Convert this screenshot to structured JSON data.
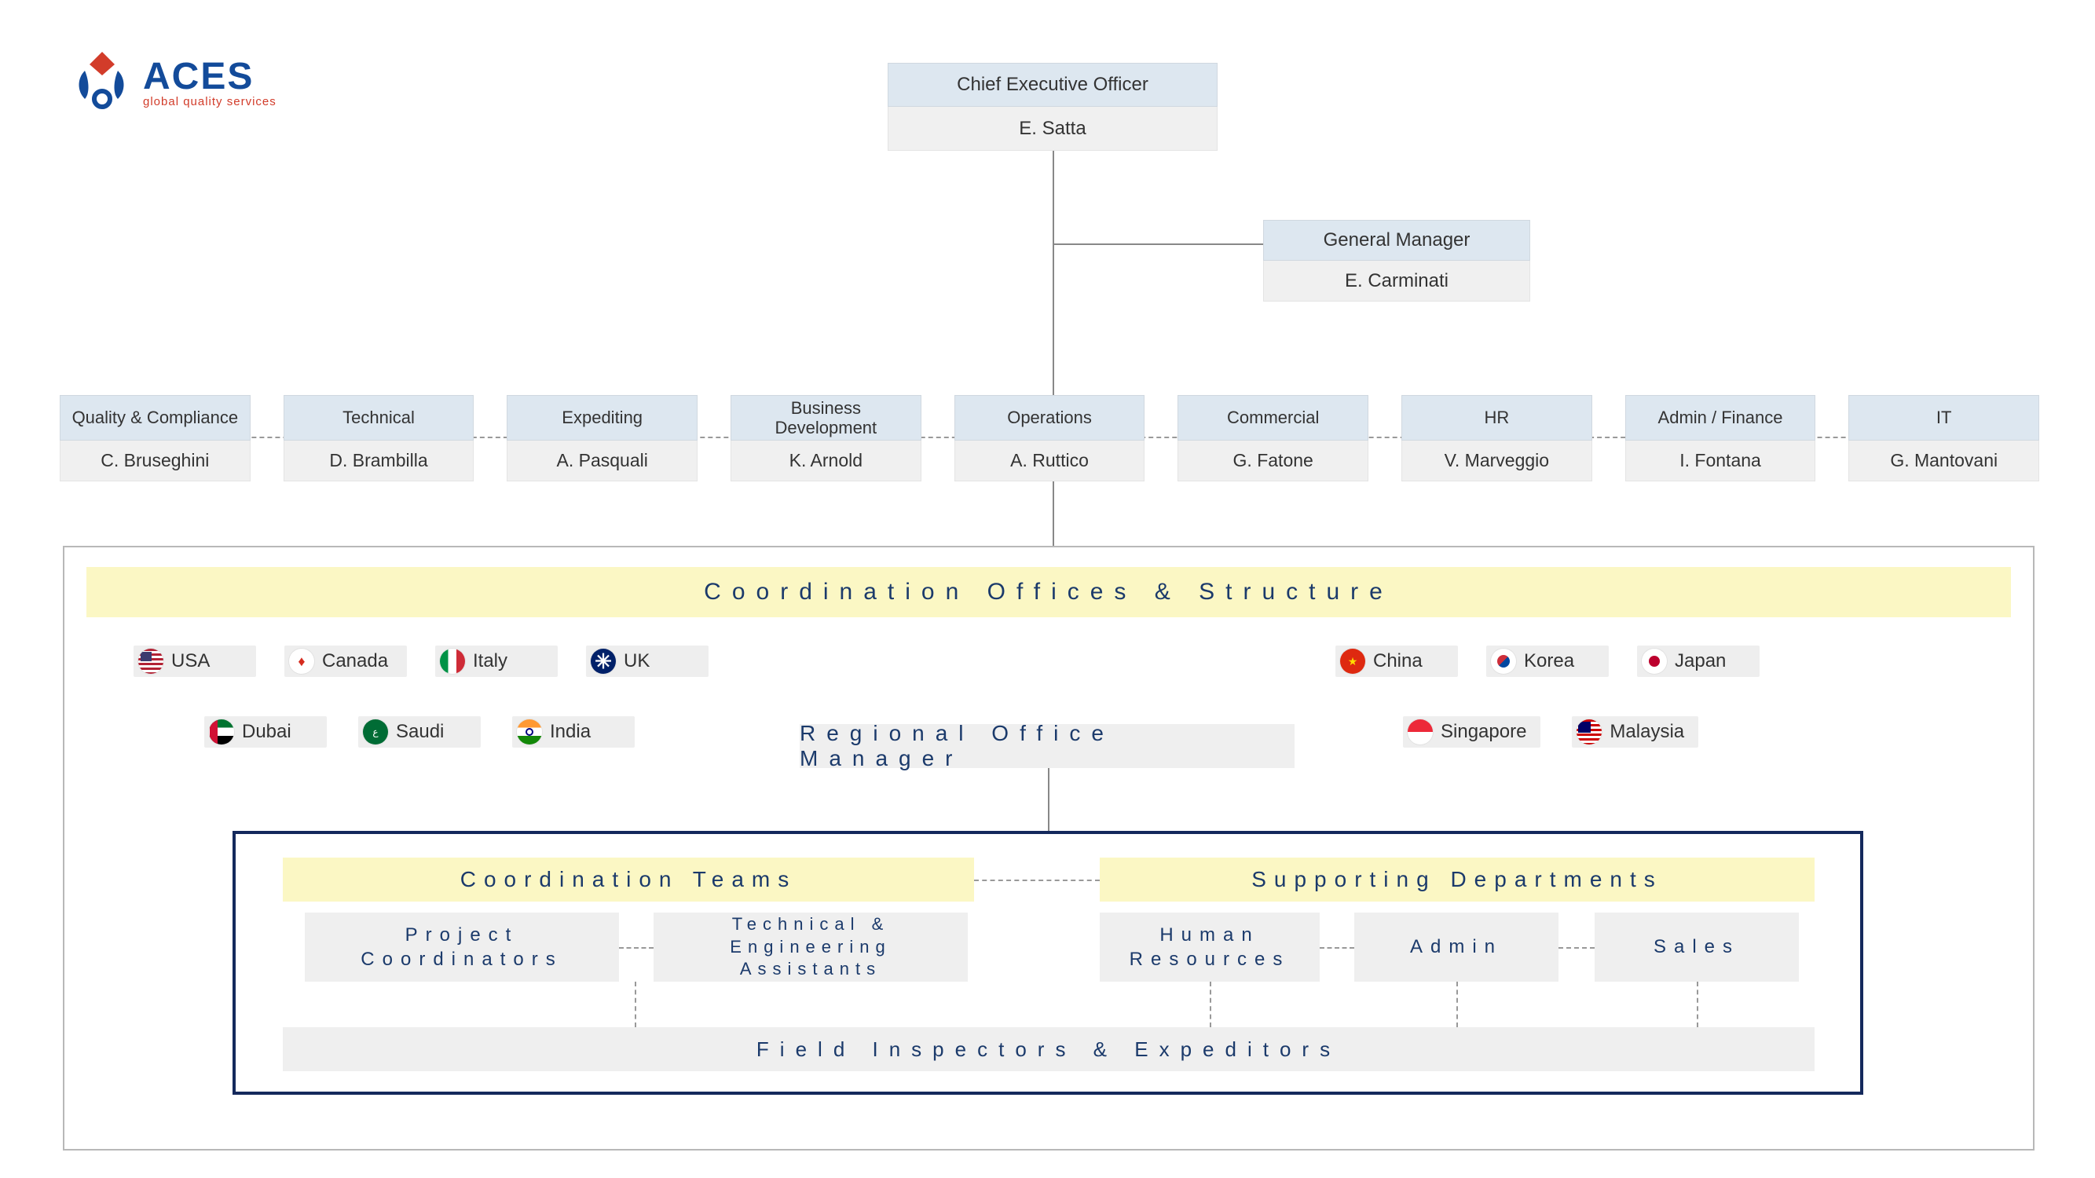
{
  "colors": {
    "title_bg": "#dde7f0",
    "name_bg": "#f0f0f0",
    "banner_bg": "#fbf7c4",
    "text_navy": "#1b3a6b",
    "border_grey": "#b8b8b8",
    "inner_border": "#14295c",
    "line": "#888888"
  },
  "logo": {
    "brand": "ACES",
    "tagline": "global quality services",
    "brand_color": "#134b9a",
    "tagline_color": "#d23c2a"
  },
  "ceo": {
    "title": "Chief Executive Officer",
    "name": "E. Satta"
  },
  "gm": {
    "title": "General Manager",
    "name": "E. Carminati"
  },
  "departments": [
    {
      "title": "Quality & Compliance",
      "name": "C. Bruseghini"
    },
    {
      "title": "Technical",
      "name": "D. Brambilla"
    },
    {
      "title": "Expediting",
      "name": "A. Pasquali"
    },
    {
      "title": "Business Development",
      "name": "K. Arnold"
    },
    {
      "title": "Operations",
      "name": "A. Ruttico"
    },
    {
      "title": "Commercial",
      "name": "G. Fatone"
    },
    {
      "title": "HR",
      "name": "V. Marveggio"
    },
    {
      "title": "Admin / Finance",
      "name": "I. Fontana"
    },
    {
      "title": "IT",
      "name": "G. Mantovani"
    }
  ],
  "coord_banner": "Coordination Offices & Structure",
  "regional_manager": "Regional Office Manager",
  "countries_left_row1": [
    {
      "label": "USA"
    },
    {
      "label": "Canada"
    },
    {
      "label": "Italy"
    },
    {
      "label": "UK"
    }
  ],
  "countries_left_row2": [
    {
      "label": "Dubai"
    },
    {
      "label": "Saudi"
    },
    {
      "label": "India"
    }
  ],
  "countries_right_row1": [
    {
      "label": "China"
    },
    {
      "label": "Korea"
    },
    {
      "label": "Japan"
    }
  ],
  "countries_right_row2": [
    {
      "label": "Singapore"
    },
    {
      "label": "Malaysia"
    }
  ],
  "coord_teams_banner": "Coordination Teams",
  "support_banner": "Supporting Departments",
  "team_boxes": {
    "project_coordinators": "Project Coordinators",
    "tech_eng": "Technical & Engineering Assistants",
    "hr": "Human Resources",
    "admin": "Admin",
    "sales": "Sales"
  },
  "bottom_bar": "Field Inspectors & Expeditors",
  "flag_colors": {
    "USA": {
      "bg": "#ffffff",
      "extra": "linear-gradient(#b22234 0 33%,#ffffff 33% 66%,#3c3b6e 66% 100%)"
    },
    "Canada": {
      "bg": "#ffffff",
      "extra": "#d52b1e"
    },
    "Italy": {
      "bg": "linear-gradient(90deg,#009246 0 33%,#ffffff 33% 66%,#ce2b37 66% 100%)"
    },
    "UK": {
      "bg": "#012169",
      "extra": "#c8102e"
    },
    "Dubai": {
      "bg": "linear-gradient(90deg,#d21034 0 28%,#000 28% 28%), linear-gradient(#00732f 0 33%,#ffffff 33% 66%,#000 66% 100%)"
    },
    "Saudi": {
      "bg": "#006c35"
    },
    "India": {
      "bg": "linear-gradient(#ff9933 0 33%,#ffffff 33% 66%,#138808 66% 100%)"
    },
    "China": {
      "bg": "#de2910"
    },
    "Korea": {
      "bg": "#ffffff",
      "extra": "kr"
    },
    "Japan": {
      "bg": "#ffffff",
      "extra": "#bc002d"
    },
    "Singapore": {
      "bg": "linear-gradient(#ed2939 0 50%,#ffffff 50% 100%)"
    },
    "Malaysia": {
      "bg": "linear-gradient(#cc0001 0 50%,#ffffff 50% 100%)",
      "extra": "#010066"
    }
  }
}
